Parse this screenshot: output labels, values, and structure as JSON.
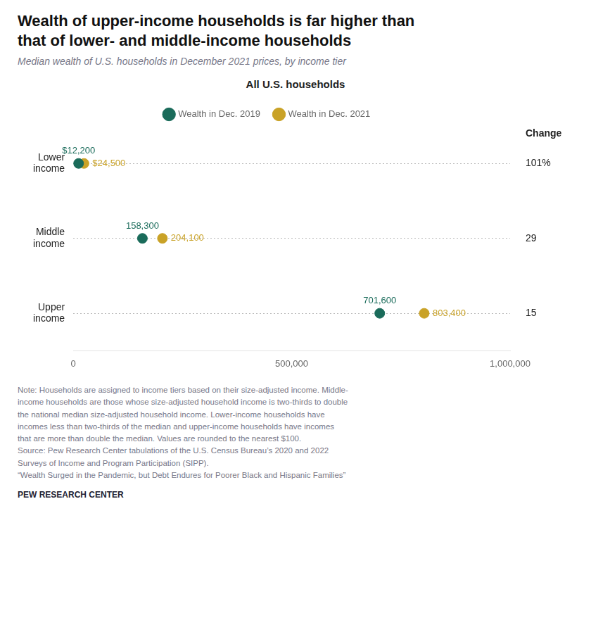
{
  "chart_data": {
    "type": "dot",
    "title": "Wealth of upper-income households is far higher than\nthat of lower- and middle-income households",
    "subtitle": "Median wealth of U.S. households in December 2021 prices, by income tier",
    "section_title": "All U.S. households",
    "categories": [
      "Lower\nincome",
      "Middle\nincome",
      "Upper\nincome"
    ],
    "series": [
      {
        "name": "Wealth in Dec. 2019",
        "color": "#1a6b5a",
        "values": [
          12200,
          158300,
          701600
        ],
        "value_labels": [
          "$12,200",
          "158,300",
          "701,600"
        ]
      },
      {
        "name": "Wealth in Dec. 2021",
        "color": "#c9a227",
        "values": [
          24500,
          204100,
          803400
        ],
        "value_labels": [
          "$24,500",
          "204,100",
          "803,400"
        ]
      }
    ],
    "xlim": [
      0,
      1000000
    ],
    "xticks": [
      0,
      {
        "value": 500000,
        "label": "500,000"
      },
      {
        "value": 1000000,
        "label": "1,000,000"
      }
    ],
    "grid": "y",
    "legend": "top",
    "data_labels": true,
    "change_column": {
      "title": "Change",
      "values": [
        101,
        29,
        15
      ],
      "value_labels": [
        "101%",
        "29",
        "15"
      ]
    },
    "note": "Note: Households are assigned to income tiers based on their size-adjusted income. Middle-\nincome households are those whose size-adjusted household income is two-thirds to double\nthe national median size-adjusted household income. Lower-income households have\nincomes less than two-thirds of the median and upper-income households have incomes\nthat are more than double the median. Values are rounded to the nearest $100.\nSource: Pew Research Center tabulations of the U.S. Census Bureau’s 2020 and 2022\nSurveys of Income and Program Participation (SIPP).\n“Wealth Surged in the Pandemic, but Debt Endures for Poorer Black and Hispanic Families”",
    "footer": "PEW RESEARCH CENTER"
  }
}
